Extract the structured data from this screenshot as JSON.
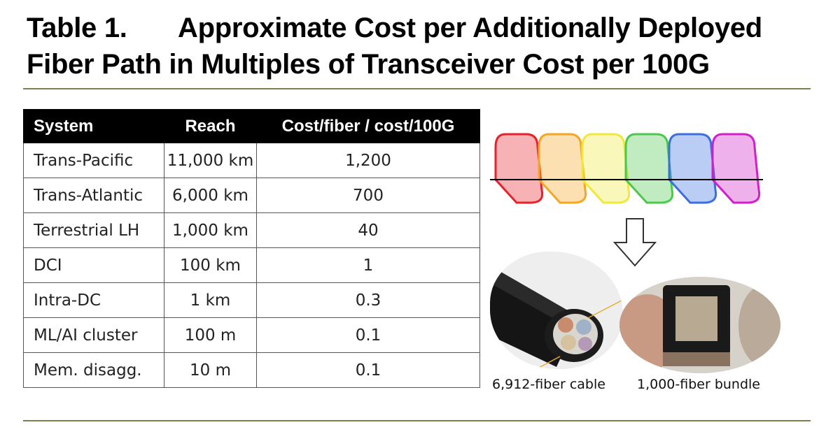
{
  "title": {
    "label": "Table 1.",
    "line1": "Approximate Cost per Additionally Deployed",
    "line2": "Fiber Path in Multiples of Transceiver Cost per 100G"
  },
  "table": {
    "headers": [
      "System",
      "Reach",
      "Cost/fiber / cost/100G"
    ],
    "rows": [
      [
        "Trans-Pacific",
        "11,000 km",
        "1,200"
      ],
      [
        "Trans-Atlantic",
        "6,000 km",
        "700"
      ],
      [
        "Terrestrial LH",
        "1,000 km",
        "40"
      ],
      [
        "DCI",
        "100 km",
        "1"
      ],
      [
        "Intra-DC",
        "1 km",
        "0.3"
      ],
      [
        "ML/AI cluster",
        "100 m",
        "0.1"
      ],
      [
        "Mem. disagg.",
        "10 m",
        "0.1"
      ]
    ]
  },
  "figure": {
    "spectrum_colors": [
      "#e8222a",
      "#f5a623",
      "#f0e83a",
      "#4cc94c",
      "#3a6fe0",
      "#d21fc8"
    ],
    "captions": {
      "cable": "6,912-fiber cable",
      "bundle": "1,000-fiber bundle"
    }
  },
  "colors": {
    "rule": "#7d7f4e",
    "header_bg": "#000000",
    "header_text": "#ffffff"
  }
}
